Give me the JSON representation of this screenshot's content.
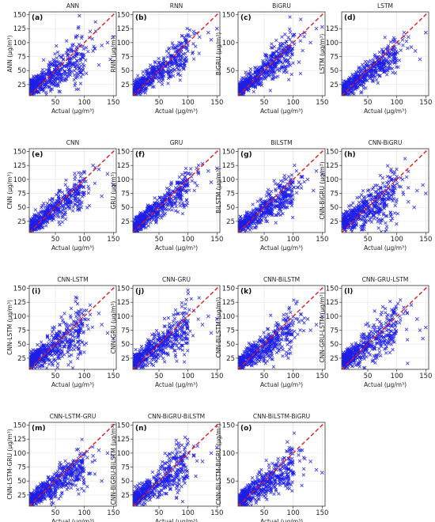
{
  "chart_data": [
    {
      "type": "scatter",
      "label": "(a)",
      "title": "ANN",
      "xlabel": "Actual (µg/m³)",
      "ylabel": "ANN (µg/m³)",
      "xlim": [
        5,
        155
      ],
      "ylim": [
        5,
        155
      ],
      "xticks": [
        50,
        100,
        150
      ],
      "yticks": [
        25,
        50,
        75,
        100,
        125,
        150
      ],
      "spread": 0.2,
      "shrink": 0.62,
      "offset": 14,
      "outliers": [
        [
          95,
          108
        ],
        [
          115,
          85
        ],
        [
          125,
          60
        ],
        [
          140,
          100
        ],
        [
          150,
          110
        ],
        [
          110,
          120
        ],
        [
          130,
          95
        ],
        [
          145,
          70
        ]
      ]
    },
    {
      "type": "scatter",
      "label": "(b)",
      "title": "RNN",
      "xlabel": "Actual (µg/m³)",
      "ylabel": "RNN (µg/m³)",
      "xlim": [
        5,
        155
      ],
      "ylim": [
        5,
        155
      ],
      "xticks": [
        50,
        100,
        150
      ],
      "yticks": [
        25,
        50,
        75,
        100,
        125,
        150
      ],
      "spread": 0.13,
      "shrink": 0.78,
      "offset": 10,
      "outliers": [
        [
          120,
          110
        ],
        [
          135,
          118
        ],
        [
          150,
          125
        ],
        [
          110,
          120
        ],
        [
          140,
          105
        ],
        [
          100,
          112
        ]
      ]
    },
    {
      "type": "scatter",
      "label": "(c)",
      "title": "BiGRU",
      "xlabel": "Actual (µg/m³)",
      "ylabel": "BiGRU (µg/m³)",
      "xlim": [
        5,
        155
      ],
      "ylim": [
        5,
        155
      ],
      "xticks": [
        50,
        100,
        150
      ],
      "yticks": [
        50,
        100,
        150
      ],
      "spread": 0.14,
      "shrink": 0.78,
      "offset": 10,
      "outliers": [
        [
          120,
          118
        ],
        [
          140,
          125
        ],
        [
          150,
          128
        ],
        [
          110,
          65
        ],
        [
          130,
          100
        ],
        [
          100,
          112
        ]
      ]
    },
    {
      "type": "scatter",
      "label": "(d)",
      "title": "LSTM",
      "xlabel": "Actual (µg/m³)",
      "ylabel": "LSTM (µg/m³)",
      "xlim": [
        5,
        155
      ],
      "ylim": [
        5,
        155
      ],
      "xticks": [
        50,
        100,
        150
      ],
      "yticks": [
        25,
        50,
        75,
        100,
        125
      ],
      "spread": 0.12,
      "shrink": 0.72,
      "offset": 10,
      "outliers": [
        [
          120,
          110
        ],
        [
          140,
          70
        ],
        [
          150,
          118
        ],
        [
          125,
          92
        ],
        [
          110,
          105
        ],
        [
          132,
          85
        ]
      ]
    },
    {
      "type": "scatter",
      "label": "(e)",
      "title": "CNN",
      "xlabel": "Actual (µg/m³)",
      "ylabel": "CNN (µg/m³)",
      "xlim": [
        5,
        155
      ],
      "ylim": [
        5,
        155
      ],
      "xticks": [
        50,
        100,
        150
      ],
      "yticks": [
        25,
        50,
        75,
        100,
        125,
        150
      ],
      "spread": 0.13,
      "shrink": 0.75,
      "offset": 10,
      "outliers": [
        [
          125,
          118
        ],
        [
          140,
          110
        ],
        [
          150,
          90
        ],
        [
          115,
          125
        ],
        [
          130,
          70
        ],
        [
          100,
          112
        ]
      ]
    },
    {
      "type": "scatter",
      "label": "(f)",
      "title": "GRU",
      "xlabel": "Actual (µg/m³)",
      "ylabel": "GRU (µg/m³)",
      "xlim": [
        5,
        155
      ],
      "ylim": [
        5,
        155
      ],
      "xticks": [
        50,
        100,
        150
      ],
      "yticks": [
        25,
        50,
        75,
        100,
        125,
        150
      ],
      "spread": 0.12,
      "shrink": 0.8,
      "offset": 9,
      "outliers": [
        [
          125,
          128
        ],
        [
          135,
          115
        ],
        [
          150,
          120
        ],
        [
          115,
          120
        ],
        [
          140,
          95
        ],
        [
          105,
          110
        ]
      ]
    },
    {
      "type": "scatter",
      "label": "(g)",
      "title": "BiLSTM",
      "xlabel": "Actual (µg/m³)",
      "ylabel": "BiLSTM (µg/m³)",
      "xlim": [
        5,
        155
      ],
      "ylim": [
        5,
        155
      ],
      "xticks": [
        50,
        100,
        150
      ],
      "yticks": [
        25,
        50,
        75,
        100,
        125,
        150
      ],
      "spread": 0.13,
      "shrink": 0.72,
      "offset": 10,
      "outliers": [
        [
          125,
          100
        ],
        [
          150,
          110
        ],
        [
          135,
          80
        ],
        [
          110,
          95
        ],
        [
          140,
          115
        ],
        [
          115,
          105
        ]
      ]
    },
    {
      "type": "scatter",
      "label": "(h)",
      "title": "CNN-BiGRU",
      "xlabel": "Actual (µg/m³)",
      "ylabel": "CNN-BiGRU (µg/m³)",
      "xlim": [
        5,
        155
      ],
      "ylim": [
        5,
        155
      ],
      "xticks": [
        50,
        100,
        150
      ],
      "yticks": [
        25,
        50,
        75,
        100,
        125,
        150
      ],
      "spread": 0.24,
      "shrink": 0.62,
      "offset": 16,
      "outliers": [
        [
          120,
          60
        ],
        [
          135,
          80
        ],
        [
          150,
          75
        ],
        [
          110,
          100
        ],
        [
          130,
          50
        ],
        [
          145,
          90
        ],
        [
          100,
          105
        ]
      ]
    },
    {
      "type": "scatter",
      "label": "(i)",
      "title": "CNN-LSTM",
      "xlabel": "Actual (µg/m³)",
      "ylabel": "CNN-LSTM (µg/m³)",
      "xlim": [
        5,
        155
      ],
      "ylim": [
        5,
        155
      ],
      "xticks": [
        50,
        100,
        150
      ],
      "yticks": [
        25,
        50,
        75,
        100,
        125,
        150
      ],
      "spread": 0.22,
      "shrink": 0.65,
      "offset": 15,
      "outliers": [
        [
          125,
          105
        ],
        [
          140,
          70
        ],
        [
          150,
          60
        ],
        [
          110,
          120
        ],
        [
          130,
          85
        ],
        [
          100,
          95
        ]
      ]
    },
    {
      "type": "scatter",
      "label": "(j)",
      "title": "CNN-GRU",
      "xlabel": "Actual (µg/m³)",
      "ylabel": "CNN-GRU (µg/m³)",
      "xlim": [
        5,
        155
      ],
      "ylim": [
        5,
        155
      ],
      "xticks": [
        50,
        100,
        150
      ],
      "yticks": [
        25,
        50,
        75,
        100,
        125,
        150
      ],
      "spread": 0.18,
      "shrink": 0.7,
      "offset": 13,
      "outliers": [
        [
          125,
          85
        ],
        [
          135,
          100
        ],
        [
          150,
          95
        ],
        [
          110,
          110
        ],
        [
          140,
          70
        ],
        [
          100,
          92
        ]
      ]
    },
    {
      "type": "scatter",
      "label": "(k)",
      "title": "CNN-BiLSTM",
      "xlabel": "Actual (µg/m³)",
      "ylabel": "CNN-BiLSTM (µg/m³)",
      "xlim": [
        5,
        155
      ],
      "ylim": [
        5,
        155
      ],
      "xticks": [
        50,
        100,
        150
      ],
      "yticks": [
        25,
        50,
        75,
        100,
        125,
        150
      ],
      "spread": 0.15,
      "shrink": 0.66,
      "offset": 12,
      "outliers": [
        [
          125,
          95
        ],
        [
          140,
          85
        ],
        [
          150,
          100
        ],
        [
          110,
          90
        ],
        [
          130,
          75
        ],
        [
          100,
          88
        ]
      ]
    },
    {
      "type": "scatter",
      "label": "(l)",
      "title": "CNN-GRU-LSTM",
      "xlabel": "Actual (µg/m³)",
      "ylabel": "CNN-GRU-LSTM (µg/m³)",
      "xlim": [
        5,
        155
      ],
      "ylim": [
        5,
        155
      ],
      "xticks": [
        50,
        100,
        150
      ],
      "yticks": [
        25,
        50,
        75,
        100,
        125,
        150
      ],
      "spread": 0.2,
      "shrink": 0.66,
      "offset": 15,
      "outliers": [
        [
          125,
          120
        ],
        [
          140,
          75
        ],
        [
          150,
          80
        ],
        [
          115,
          110
        ],
        [
          135,
          95
        ],
        [
          145,
          60
        ],
        [
          105,
          100
        ]
      ]
    },
    {
      "type": "scatter",
      "label": "(m)",
      "title": "CNN-LSTM-GRU",
      "xlabel": "Actual (µg/m³)",
      "ylabel": "CNN-LSTM-GRU (µg/m³)",
      "xlim": [
        5,
        155
      ],
      "ylim": [
        5,
        155
      ],
      "xticks": [
        50,
        100,
        150
      ],
      "yticks": [
        25,
        50,
        75,
        100,
        125,
        150
      ],
      "spread": 0.14,
      "shrink": 0.68,
      "offset": 11,
      "outliers": [
        [
          125,
          105
        ],
        [
          140,
          100
        ],
        [
          150,
          95
        ],
        [
          115,
          95
        ],
        [
          130,
          50
        ],
        [
          105,
          92
        ]
      ]
    },
    {
      "type": "scatter",
      "label": "(n)",
      "title": "CNN-BiGRU-BiLSTM",
      "xlabel": "Actual (µg/m³)",
      "ylabel": "CNN-BiGRU-BiLSTM (µg/m³)",
      "xlim": [
        5,
        155
      ],
      "ylim": [
        5,
        155
      ],
      "xticks": [
        50,
        100,
        150
      ],
      "yticks": [
        25,
        50,
        75,
        100,
        125,
        150
      ],
      "spread": 0.2,
      "shrink": 0.7,
      "offset": 13,
      "outliers": [
        [
          95,
          128
        ],
        [
          110,
          95
        ],
        [
          140,
          100
        ],
        [
          100,
          118
        ],
        [
          125,
          85
        ],
        [
          150,
          110
        ]
      ]
    },
    {
      "type": "scatter",
      "label": "(o)",
      "title": "CNN-BiLSTM-BiGRU",
      "xlabel": "Actual (µg/m³)",
      "ylabel": "CNN-BiLSTM-BiGRU (µg/m³)",
      "xlim": [
        5,
        155
      ],
      "ylim": [
        5,
        155
      ],
      "xticks": [
        50,
        100,
        150
      ],
      "yticks": [
        50,
        100,
        150
      ],
      "spread": 0.16,
      "shrink": 0.66,
      "offset": 11,
      "outliers": [
        [
          90,
          120
        ],
        [
          120,
          90
        ],
        [
          140,
          70
        ],
        [
          150,
          65
        ],
        [
          110,
          105
        ],
        [
          130,
          85
        ]
      ]
    }
  ]
}
